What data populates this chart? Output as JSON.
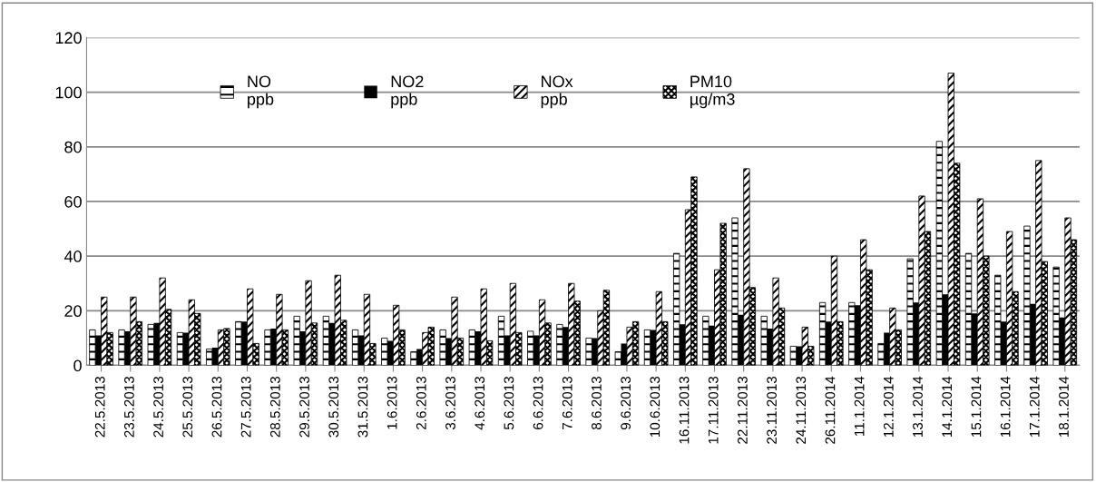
{
  "chart_data": {
    "type": "bar",
    "categories": [
      "22.5.2013",
      "23.5.2013",
      "24.5.2013",
      "25.5.2013",
      "26.5.2013",
      "27.5.2013",
      "28.5.2013",
      "29.5.2013",
      "30.5.2013",
      "31.5.2013",
      "1.6.2013",
      "2.6.2013",
      "3.6.2013",
      "4.6.2013",
      "5.6.2013",
      "6.6.2013",
      "7.6.2013",
      "8.6.2013",
      "9.6.2013",
      "10.6.2013",
      "16.11.2013",
      "17.11.2013",
      "22.11.2013",
      "23.11.2013",
      "24.11.2013",
      "26.11.2014",
      "11.1.2014",
      "12.1.2014",
      "13.1.2014",
      "14.1.2014",
      "15.1.2014",
      "16.1.2014",
      "17.1.2014",
      "18.1.2014"
    ],
    "series": [
      {
        "name": "NO\nppb",
        "color": "#000000",
        "values": [
          13,
          13,
          15,
          12,
          6,
          16,
          13,
          18,
          18,
          13,
          10,
          5,
          13,
          13,
          18,
          12.5,
          15,
          10,
          5,
          13,
          41,
          18,
          54,
          18,
          7,
          23,
          23,
          8,
          39,
          82,
          41,
          33,
          51,
          36
        ]
      },
      {
        "name": "NO2\nppb",
        "color": "#000000",
        "values": [
          11,
          12.5,
          15.5,
          12,
          6.5,
          16,
          13.5,
          12.5,
          15.5,
          11,
          9,
          6,
          10,
          12.5,
          11,
          11,
          14,
          10,
          8,
          13,
          15,
          14.5,
          18.5,
          13.5,
          7,
          16,
          22,
          12,
          23,
          26,
          19,
          16,
          22.5,
          17.5
        ]
      },
      {
        "name": "NOx\nppb",
        "color": "#000000",
        "values": [
          25,
          25,
          32,
          24,
          13,
          28,
          26,
          31,
          33,
          26,
          22,
          12,
          25,
          28,
          30,
          24,
          30,
          20,
          14,
          27,
          57,
          35,
          72,
          32,
          14,
          40,
          46,
          21,
          62,
          107,
          61,
          49,
          75,
          54
        ]
      },
      {
        "name": "PM10\nµg/m3",
        "color": "#000000",
        "values": [
          12,
          16,
          20.5,
          19,
          13.5,
          8,
          13,
          15.5,
          16.5,
          8,
          13,
          14,
          10,
          9,
          12,
          15.5,
          23.5,
          27.5,
          16,
          16,
          69,
          52,
          28.5,
          21,
          7,
          16,
          35,
          13,
          49,
          74,
          40,
          27,
          38,
          46
        ]
      }
    ],
    "ylim": [
      0,
      120
    ],
    "yticks": [
      0,
      20,
      40,
      60,
      80,
      100,
      120
    ],
    "grid": "y",
    "legend": "top"
  }
}
